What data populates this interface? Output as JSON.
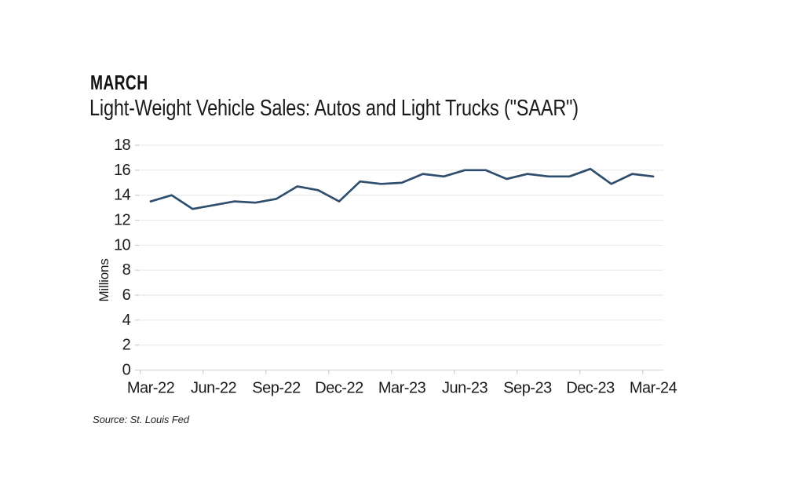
{
  "header": {
    "title": "MARCH",
    "subtitle": "Light-Weight Vehicle Sales: Autos and Light Trucks (\"SAAR\")"
  },
  "source": "Source: St. Louis Fed",
  "colors": {
    "line": "#2f4e6d",
    "gridline": "#eaeaea",
    "axis_line": "#d8d8d8",
    "tick": "#cccccc",
    "text": "#1b1b1b"
  },
  "chart_data": {
    "type": "line",
    "title": "MARCH",
    "subtitle": "Light-Weight Vehicle Sales: Autos and Light Trucks (\"SAAR\")",
    "xlabel": "",
    "ylabel": "Millions",
    "ylim": [
      0,
      18
    ],
    "ytick_step": 2,
    "grid": true,
    "legend_position": "none",
    "x": [
      "Mar-22",
      "Apr-22",
      "May-22",
      "Jun-22",
      "Jul-22",
      "Aug-22",
      "Sep-22",
      "Oct-22",
      "Nov-22",
      "Dec-22",
      "Jan-23",
      "Feb-23",
      "Mar-23",
      "Apr-23",
      "May-23",
      "Jun-23",
      "Jul-23",
      "Aug-23",
      "Sep-23",
      "Oct-23",
      "Nov-23",
      "Dec-23",
      "Jan-24",
      "Feb-24",
      "Mar-24"
    ],
    "xtick_labels": [
      "Mar-22",
      "Jun-22",
      "Sep-22",
      "Dec-22",
      "Mar-23",
      "Jun-23",
      "Sep-23",
      "Dec-23",
      "Mar-24"
    ],
    "series": [
      {
        "name": "Light-Weight Vehicle Sales: Autos and Light Trucks (SAAR)",
        "values": [
          13.5,
          14.0,
          12.9,
          13.2,
          13.5,
          13.4,
          13.7,
          14.7,
          14.4,
          13.5,
          15.1,
          14.9,
          15.0,
          15.7,
          15.5,
          16.0,
          16.0,
          15.3,
          15.7,
          15.5,
          15.5,
          16.1,
          14.9,
          15.7,
          15.5
        ]
      }
    ]
  }
}
